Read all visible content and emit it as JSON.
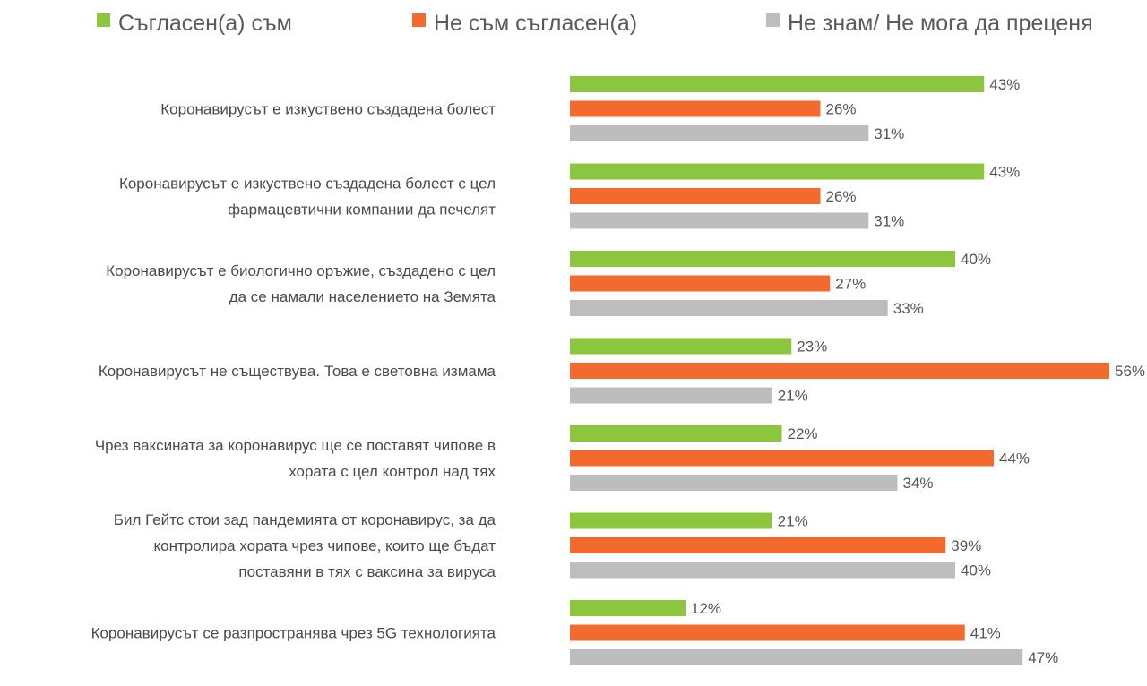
{
  "chart_data": {
    "type": "bar",
    "orientation": "horizontal",
    "grid": false,
    "legend_position": "top",
    "title": "",
    "xlabel": "",
    "ylabel": "",
    "xlim": [
      0,
      56
    ],
    "value_suffix": "%",
    "colors": {
      "agree": "#8cc63f",
      "disagree": "#f26a2e",
      "dont_know": "#bdbdbd"
    },
    "categories": [
      [
        "Коронавирусът е изкуствено създадена болест"
      ],
      [
        "Коронавирусът е изкуствено създадена болест  с цел",
        "фармацевтични компании да печелят"
      ],
      [
        "Коронавирусът е биологично оръжие, създадено с цел",
        "да се намали населението  на Земята"
      ],
      [
        "Коронавирусът не съществува. Това е световна измама"
      ],
      [
        "Чрез ваксината за коронавирус ще се поставят чипове в",
        "хората с цел  контрол над тях"
      ],
      [
        "Бил Гейтс стои зад пандемията от коронавирус, за да",
        "контролира хората чрез чипове, които ще бъдат",
        "поставяни в тях с ваксина за вируса"
      ],
      [
        "Коронавирусът се разпространява чрез 5G технологията"
      ]
    ],
    "series": [
      {
        "key": "agree",
        "name": "Съгласен(а) съм",
        "values": [
          43,
          43,
          40,
          23,
          22,
          21,
          12
        ]
      },
      {
        "key": "disagree",
        "name": "Не съм съгласен(а)",
        "values": [
          26,
          26,
          27,
          56,
          44,
          39,
          41
        ]
      },
      {
        "key": "dont_know",
        "name": "Не знам/ Не мога да преценя",
        "values": [
          31,
          31,
          33,
          21,
          34,
          40,
          47
        ]
      }
    ]
  }
}
